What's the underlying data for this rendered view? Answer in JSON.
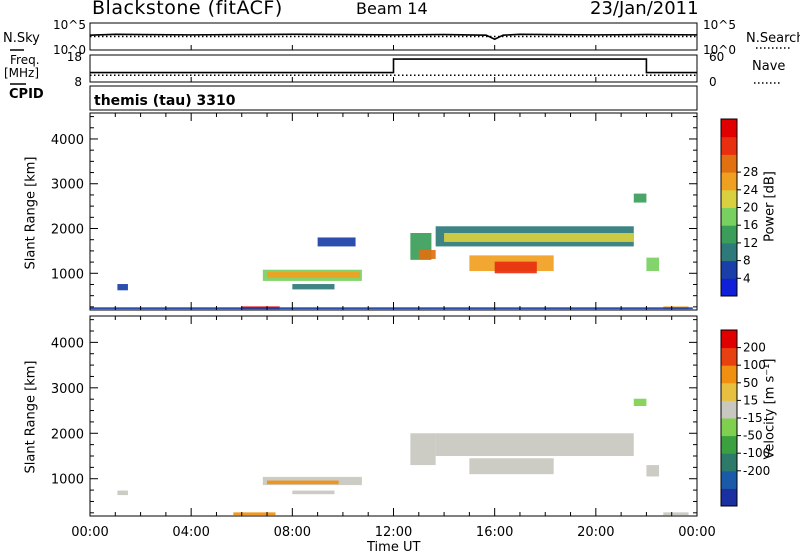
{
  "header": {
    "station": "Blackstone (fitACF)",
    "beam": "Beam 14",
    "date": "23/Jan/2011"
  },
  "left_labels": {
    "nsky": "N.Sky",
    "freq": "Freq.",
    "freq_unit": "[MHz]",
    "cpid": "CPID"
  },
  "right_labels": {
    "nsearch": "N.Search",
    "nave": "Nave"
  },
  "cpid_value": "themis (tau) 3310",
  "chart_data": [
    {
      "type": "line",
      "name": "noise",
      "left_ticks": [
        "10^5",
        "10^0"
      ],
      "right_ticks": [
        "10^5",
        "10^0"
      ],
      "series": [
        {
          "name": "N.Sky",
          "style": "solid",
          "x": [
            "00:00",
            "01:00",
            "02:00",
            "04:00",
            "06:00",
            "08:00",
            "10:00",
            "12:00",
            "14:00",
            "15:40",
            "16:00",
            "16:20",
            "17:00",
            "18:00",
            "20:00",
            "22:00",
            "24:00"
          ],
          "y": [
            0.55,
            0.58,
            0.57,
            0.56,
            0.57,
            0.58,
            0.57,
            0.56,
            0.57,
            0.55,
            0.4,
            0.55,
            0.58,
            0.57,
            0.56,
            0.57,
            0.56
          ]
        },
        {
          "name": "N.Search",
          "style": "dotted",
          "x": [
            "00:00",
            "24:00"
          ],
          "y": [
            0.5,
            0.5
          ]
        }
      ]
    },
    {
      "type": "line",
      "name": "frequency",
      "left_ticks": [
        "18",
        "8"
      ],
      "right_ticks": [
        "60",
        "0"
      ],
      "series": [
        {
          "name": "Freq",
          "style": "solid",
          "x": [
            "00:00",
            "12:00",
            "12:00",
            "22:00",
            "22:00",
            "24:00"
          ],
          "y": [
            11.5,
            11.5,
            16.5,
            16.5,
            11.5,
            11.5
          ]
        },
        {
          "name": "Nave",
          "style": "dotted",
          "x": [
            "00:00",
            "24:00"
          ],
          "y": [
            10.5,
            10.5
          ]
        }
      ]
    },
    {
      "type": "heatmap",
      "name": "power",
      "ylabel": "Slant Range [km]",
      "yticks": [
        "1000",
        "2000",
        "3000",
        "4000"
      ],
      "ylim": [
        180,
        4580
      ],
      "colorbar_label": "Power [dB]",
      "colorbar_ticks": [
        "4",
        "8",
        "12",
        "16",
        "20",
        "24",
        "28"
      ],
      "colorbar_colors": [
        "#1020d8",
        "#1a3fa8",
        "#2e7a7a",
        "#3a9e5a",
        "#78d060",
        "#d8d040",
        "#f0a020",
        "#e07010",
        "#e83010",
        "#e00000"
      ],
      "patches": [
        {
          "t0": "01:05",
          "t1": "01:30",
          "r0": 620,
          "r1": 760,
          "level": 1
        },
        {
          "t0": "06:00",
          "t1": "07:30",
          "r0": 200,
          "r1": 260,
          "level": 9
        },
        {
          "t0": "06:50",
          "t1": "10:45",
          "r0": 830,
          "r1": 1080,
          "level": 4
        },
        {
          "t0": "07:00",
          "t1": "10:40",
          "r0": 900,
          "r1": 1030,
          "level": 6
        },
        {
          "t0": "08:00",
          "t1": "09:40",
          "r0": 640,
          "r1": 760,
          "level": 2
        },
        {
          "t0": "09:00",
          "t1": "10:30",
          "r0": 1600,
          "r1": 1800,
          "level": 1
        },
        {
          "t0": "12:40",
          "t1": "13:30",
          "r0": 1300,
          "r1": 1900,
          "level": 3
        },
        {
          "t0": "13:00",
          "t1": "13:40",
          "r0": 1320,
          "r1": 1520,
          "level": 7
        },
        {
          "t0": "13:40",
          "t1": "21:30",
          "r0": 1600,
          "r1": 2050,
          "level": 2
        },
        {
          "t0": "14:00",
          "t1": "21:30",
          "r0": 1700,
          "r1": 1900,
          "level": 5
        },
        {
          "t0": "15:00",
          "t1": "18:20",
          "r0": 1050,
          "r1": 1400,
          "level": 6
        },
        {
          "t0": "16:00",
          "t1": "17:40",
          "r0": 1000,
          "r1": 1260,
          "level": 8
        },
        {
          "t0": "21:30",
          "t1": "22:00",
          "r0": 2580,
          "r1": 2780,
          "level": 3
        },
        {
          "t0": "22:00",
          "t1": "22:30",
          "r0": 1050,
          "r1": 1350,
          "level": 4
        },
        {
          "t0": "22:40",
          "t1": "23:40",
          "r0": 200,
          "r1": 260,
          "level": 6
        },
        {
          "t0": "00:00",
          "t1": "23:50",
          "r0": 200,
          "r1": 240,
          "level": 1
        }
      ]
    },
    {
      "type": "heatmap",
      "name": "velocity",
      "ylabel": "Slant Range [km]",
      "yticks": [
        "1000",
        "2000",
        "3000",
        "4000"
      ],
      "ylim": [
        180,
        4580
      ],
      "colorbar_label": "Velocity [m s⁻¹]",
      "colorbar_ticks": [
        "200",
        "100",
        "50",
        "15",
        "-15",
        "-50",
        "-100",
        "-200"
      ],
      "colorbar_colors": [
        "#1a2fa0",
        "#1a5aa8",
        "#2e7a6a",
        "#3aa040",
        "#80d050",
        "#c8c8c0",
        "#e8c040",
        "#f09010",
        "#e84010",
        "#e00000"
      ],
      "patches": [
        {
          "t0": "01:05",
          "t1": "01:30",
          "r0": 640,
          "r1": 740,
          "level": 5
        },
        {
          "t0": "05:40",
          "t1": "07:20",
          "r0": 200,
          "r1": 260,
          "level": 7
        },
        {
          "t0": "06:50",
          "t1": "10:45",
          "r0": 860,
          "r1": 1040,
          "level": 5
        },
        {
          "t0": "07:00",
          "t1": "09:50",
          "r0": 880,
          "r1": 960,
          "level": 7
        },
        {
          "t0": "08:00",
          "t1": "09:40",
          "r0": 660,
          "r1": 740,
          "level": 5
        },
        {
          "t0": "12:40",
          "t1": "13:40",
          "r0": 1300,
          "r1": 2000,
          "level": 5
        },
        {
          "t0": "13:40",
          "t1": "21:30",
          "r0": 1500,
          "r1": 2000,
          "level": 5
        },
        {
          "t0": "15:00",
          "t1": "18:20",
          "r0": 1100,
          "r1": 1450,
          "level": 5
        },
        {
          "t0": "21:30",
          "t1": "22:00",
          "r0": 2600,
          "r1": 2760,
          "level": 4
        },
        {
          "t0": "22:00",
          "t1": "22:30",
          "r0": 1050,
          "r1": 1300,
          "level": 5
        },
        {
          "t0": "22:40",
          "t1": "23:40",
          "r0": 200,
          "r1": 260,
          "level": 5
        }
      ]
    }
  ],
  "xaxis": {
    "ticks": [
      "00:00",
      "04:00",
      "08:00",
      "12:00",
      "16:00",
      "20:00",
      "00:00"
    ],
    "label": "Time UT"
  }
}
